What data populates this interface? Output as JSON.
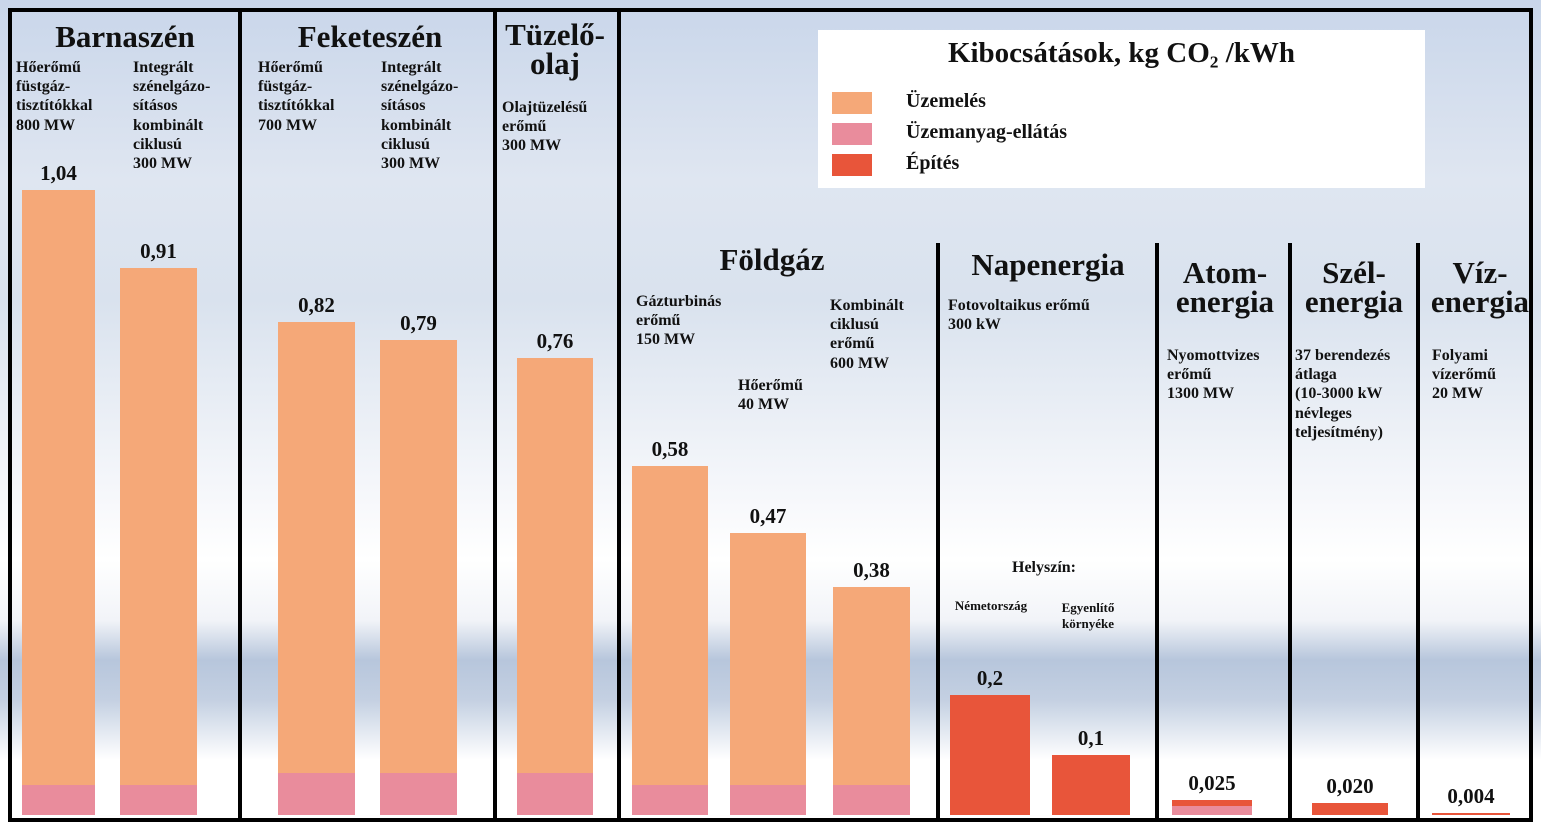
{
  "chart_data": {
    "type": "bar",
    "legend_title": "Kibocsátások, kg CO₂ /kWh",
    "groups": [
      {
        "name": "Barnaszén",
        "categories": [
          "Hőerőmű\nfüstgáz-\ntisztítókkal\n800 MW",
          "Integrált\nszénelgázo-\nsításos\nkombinált\nciklusú\n300 MW"
        ]
      },
      {
        "name": "Feketeszén",
        "categories": [
          "Hőerőmű\nfüstgáz-\ntisztítókkal\n700 MW",
          "Integrált\nszénelgázo-\nsításos\nkombinált\nciklusú\n300 MW"
        ]
      },
      {
        "name": "Tüzelő-\nolaj",
        "categories": [
          "Olajtüzelésű\nerőmű\n300 MW"
        ]
      },
      {
        "name": "Földgáz",
        "categories": [
          "Gázturbinás\nerőmű\n150 MW",
          "Hőerőmű\n40 MW",
          "Kombinált\nciklusú\nerőmű\n600 MW"
        ]
      },
      {
        "name": "Napenergia",
        "subtitle": "Fotovoltaikus erőmű\n300 kW",
        "note": "Helyszín:",
        "categories": [
          "Németország",
          "Egyenlítő\nkörnyéke"
        ]
      },
      {
        "name": "Atom-\nenergia",
        "categories": [
          "Nyomottvizes\nerőmű\n1300 MW"
        ]
      },
      {
        "name": "Szél-\nenergia",
        "categories": [
          "37 berendezés\nátlaga\n(10-3000 kW\nnévleges\nteljesítmény)"
        ]
      },
      {
        "name": "Víz-\nenergia",
        "categories": [
          "Folyami\nvízerőmű\n20 MW"
        ]
      }
    ],
    "series": [
      {
        "name": "Üzemelés",
        "color": "#f5a878",
        "values": [
          0.99,
          0.86,
          0.75,
          0.72,
          0.69,
          0.53,
          0.42,
          0.33,
          0,
          0,
          0,
          0,
          0
        ]
      },
      {
        "name": "Üzemanyag-ellátás",
        "color": "#e98c9c",
        "values": [
          0.05,
          0.05,
          0.07,
          0.07,
          0.07,
          0.05,
          0.05,
          0.05,
          0,
          0,
          0.015,
          0,
          0
        ]
      },
      {
        "name": "Építés",
        "color": "#e8553a",
        "values": [
          0,
          0,
          0,
          0,
          0,
          0,
          0,
          0,
          0.2,
          0.1,
          0.01,
          0.02,
          0.004
        ]
      }
    ],
    "totals": [
      1.04,
      0.91,
      0.82,
      0.79,
      0.76,
      0.58,
      0.47,
      0.38,
      0.2,
      0.1,
      0.025,
      0.02,
      0.004
    ],
    "total_labels": [
      "1,04",
      "0,91",
      "0,82",
      "0,79",
      "0,76",
      "0,58",
      "0,47",
      "0,38",
      "0,2",
      "0,1",
      "0,025",
      "0,020",
      "0,004"
    ]
  }
}
